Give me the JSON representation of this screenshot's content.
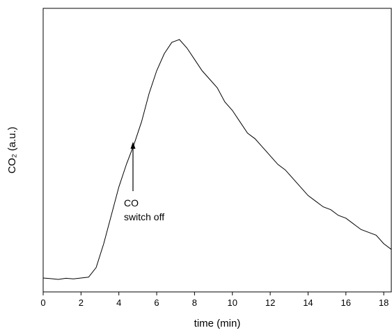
{
  "chart_data": {
    "type": "line",
    "xlabel": "time (min)",
    "ylabel": "CO₂ (a.u.)",
    "annotations": [
      "CO",
      "switch off"
    ],
    "x": [
      0,
      0.4,
      0.8,
      1.2,
      1.6,
      2.0,
      2.4,
      2.8,
      3.2,
      3.6,
      4.0,
      4.4,
      4.8,
      5.2,
      5.6,
      6.0,
      6.4,
      6.8,
      7.2,
      7.6,
      8.0,
      8.4,
      8.8,
      9.2,
      9.6,
      10.0,
      10.4,
      10.8,
      11.2,
      11.6,
      12.0,
      12.4,
      12.8,
      13.2,
      13.6,
      14.0,
      14.4,
      14.8,
      15.2,
      15.6,
      16.0,
      16.4,
      16.8,
      17.2,
      17.6,
      18.0,
      18.4
    ],
    "series": [
      {
        "name": "CO2",
        "color": "#000000",
        "values": [
          4.9,
          4.7,
          4.4,
          4.8,
          4.6,
          4.9,
          5.2,
          8.6,
          17,
          27,
          37,
          45,
          52,
          60,
          70,
          78,
          84,
          88,
          89,
          86,
          82,
          78,
          75,
          72,
          67,
          64,
          60,
          56,
          54,
          51,
          48,
          45,
          43,
          40,
          37,
          34,
          32,
          30,
          29,
          27,
          26,
          24,
          22,
          21,
          20,
          17,
          15
        ]
      }
    ],
    "xlim": [
      0,
      18.4
    ],
    "xticks": [
      0,
      2,
      4,
      6,
      8,
      10,
      12,
      14,
      16,
      18
    ],
    "ylim": [
      0,
      100
    ]
  }
}
